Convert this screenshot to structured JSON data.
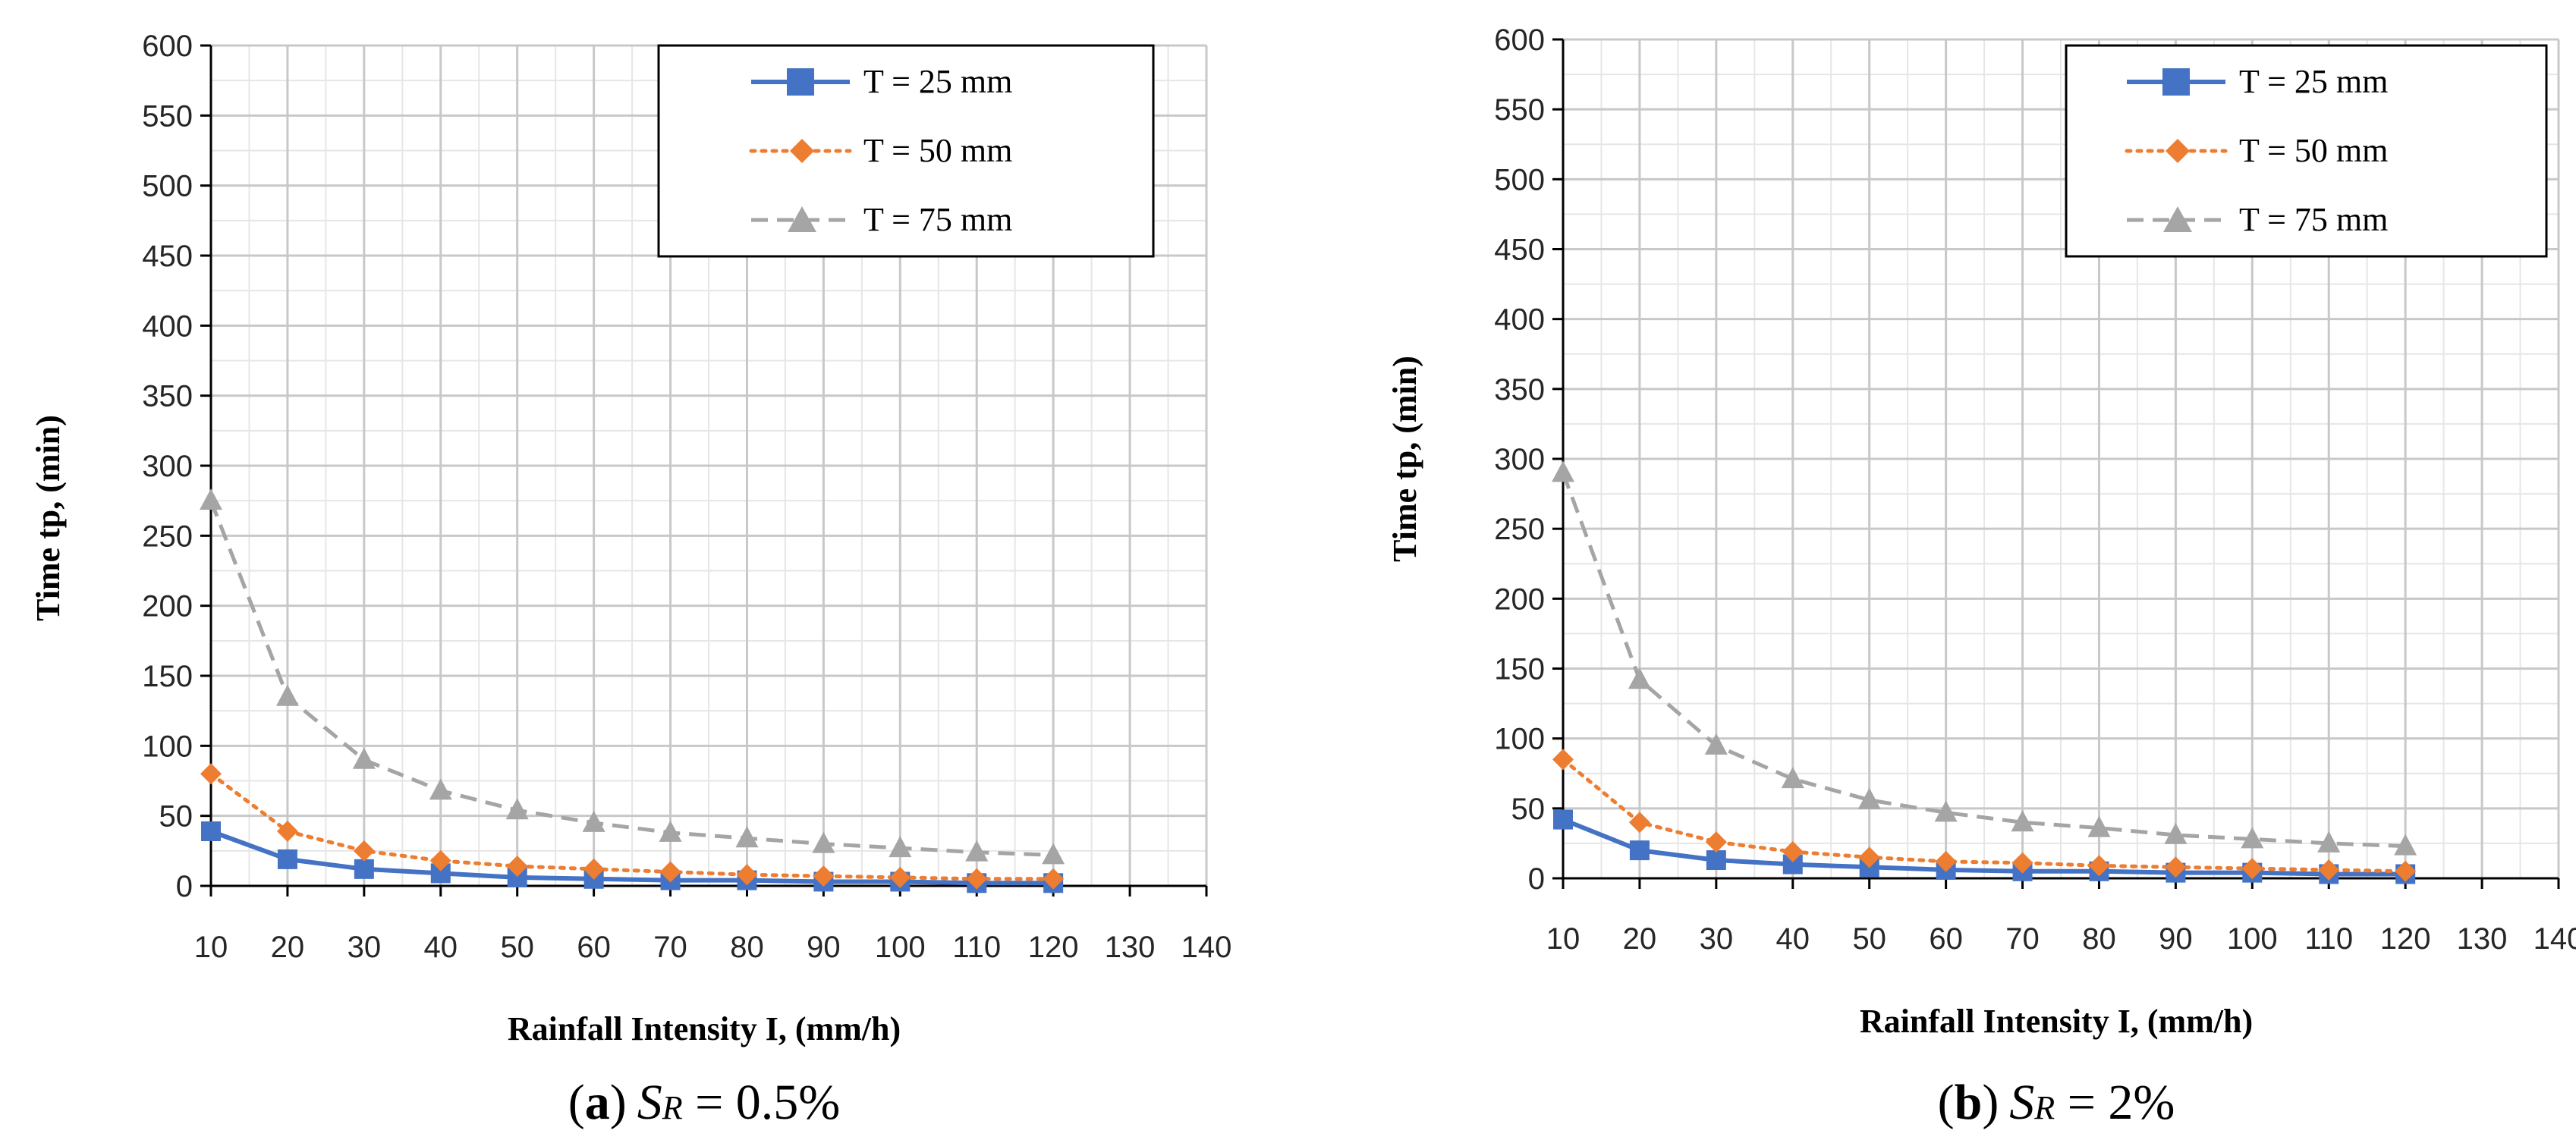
{
  "chart_data": [
    {
      "type": "line",
      "caption": {
        "open": "(",
        "letter": "a",
        "close": ")",
        "var": "S",
        "sub": "R",
        "rest": " = 0.5%"
      },
      "xlabel": "Rainfall Intensity I, (mm/h)",
      "ylabel": "Time tp, (min)",
      "xlim": [
        10,
        140
      ],
      "ylim": [
        0,
        600
      ],
      "xticks": [
        10,
        20,
        30,
        40,
        50,
        60,
        70,
        80,
        90,
        100,
        110,
        120,
        130,
        140
      ],
      "yticks": [
        0,
        50,
        100,
        150,
        200,
        250,
        300,
        350,
        400,
        450,
        500,
        550,
        600
      ],
      "grid": true,
      "legend_position": "top-right",
      "x": [
        10,
        20,
        30,
        40,
        50,
        60,
        70,
        80,
        90,
        100,
        110,
        120
      ],
      "series": [
        {
          "name": "T = 25 mm",
          "color": "#4472c4",
          "marker": "square",
          "style": "solid",
          "values": [
            39,
            19,
            12,
            9,
            6,
            5,
            4,
            4,
            3,
            3,
            2,
            2
          ]
        },
        {
          "name": "T = 50 mm",
          "color": "#ed7d31",
          "marker": "diamond",
          "style": "dotted",
          "values": [
            80,
            39,
            25,
            18,
            14,
            12,
            10,
            8,
            7,
            6,
            5,
            5
          ]
        },
        {
          "name": "T = 75 mm",
          "color": "#a5a5a5",
          "marker": "triangle",
          "style": "dashed",
          "values": [
            275,
            135,
            90,
            68,
            54,
            45,
            38,
            34,
            30,
            27,
            24,
            22
          ]
        }
      ]
    },
    {
      "type": "line",
      "caption": {
        "open": "(",
        "letter": "b",
        "close": ")",
        "var": "S",
        "sub": "R",
        "rest": " = 2%"
      },
      "xlabel": "Rainfall Intensity I, (mm/h)",
      "ylabel": "Time tp, (min)",
      "xlim": [
        10,
        140
      ],
      "ylim": [
        0,
        600
      ],
      "xticks": [
        10,
        20,
        30,
        40,
        50,
        60,
        70,
        80,
        90,
        100,
        110,
        120,
        130,
        140
      ],
      "yticks": [
        0,
        50,
        100,
        150,
        200,
        250,
        300,
        350,
        400,
        450,
        500,
        550,
        600
      ],
      "grid": true,
      "legend_position": "top-right",
      "x": [
        10,
        20,
        30,
        40,
        50,
        60,
        70,
        80,
        90,
        100,
        110,
        120
      ],
      "series": [
        {
          "name": "T = 25 mm",
          "color": "#4472c4",
          "marker": "square",
          "style": "solid",
          "values": [
            42,
            20,
            13,
            10,
            8,
            6,
            5,
            5,
            4,
            4,
            3,
            3
          ]
        },
        {
          "name": "T = 50 mm",
          "color": "#ed7d31",
          "marker": "diamond",
          "style": "dotted",
          "values": [
            85,
            40,
            26,
            19,
            15,
            12,
            11,
            9,
            8,
            7,
            6,
            5
          ]
        },
        {
          "name": "T = 75 mm",
          "color": "#a5a5a5",
          "marker": "triangle",
          "style": "dashed",
          "values": [
            290,
            142,
            95,
            71,
            56,
            47,
            40,
            36,
            31,
            28,
            25,
            23
          ]
        }
      ]
    }
  ]
}
